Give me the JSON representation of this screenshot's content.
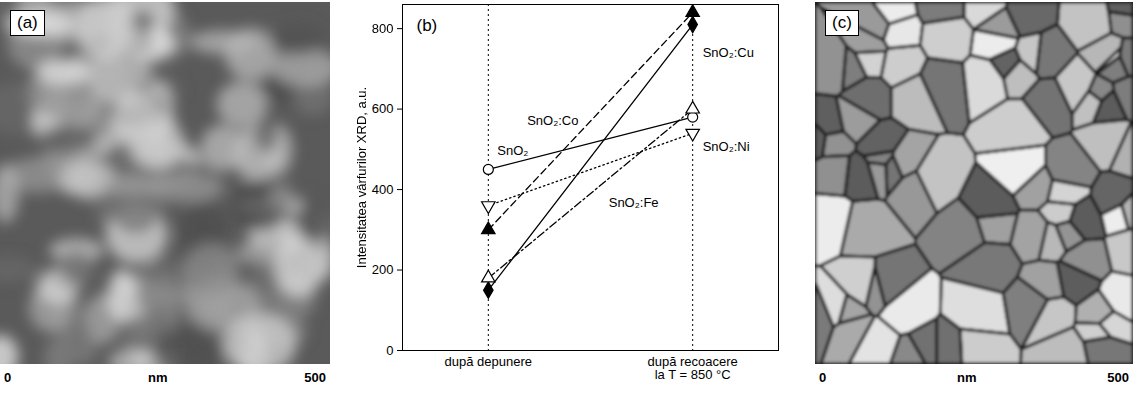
{
  "chart_data": {
    "type": "line",
    "panel_label": "(b)",
    "ylabel": "Intensitatea vârfurilor XRD, a.u.",
    "categories": [
      "după depunere",
      "după recoacere\nla T = 850 °C"
    ],
    "ylim": [
      0,
      860
    ],
    "yticks": [
      0,
      200,
      400,
      600,
      800
    ],
    "grid": true,
    "series": [
      {
        "name": "SnO₂",
        "color": "#000000",
        "values": [
          450,
          580
        ],
        "marker": "circle-open",
        "line_style": "solid"
      },
      {
        "name": "SnO₂:Co",
        "color": "#000000",
        "values": [
          300,
          840
        ],
        "marker": "triangle-filled",
        "line_style": "dashed"
      },
      {
        "name": "SnO₂:Cu",
        "color": "#000000",
        "values": [
          150,
          810
        ],
        "marker": "diamond-filled",
        "line_style": "solid"
      },
      {
        "name": "SnO₂:Fe",
        "color": "#000000",
        "values": [
          180,
          600
        ],
        "marker": "triangle-open",
        "line_style": "dashdot"
      },
      {
        "name": "SnO₂:Ni",
        "color": "#000000",
        "values": [
          360,
          540
        ],
        "marker": "triangle-down-open",
        "line_style": "dotted"
      }
    ]
  },
  "images": [
    {
      "label": "(a)",
      "axis": {
        "start": "0",
        "unit": "nm",
        "end": "500"
      }
    },
    {
      "label": "(c)",
      "axis": {
        "start": "0",
        "unit": "nm",
        "end": "500"
      }
    }
  ]
}
